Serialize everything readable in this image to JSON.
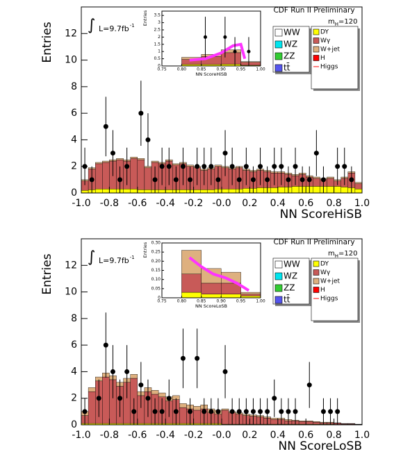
{
  "chart_data": [
    {
      "type": "histogram",
      "title": "CDF Run II Preliminary",
      "xlabel": "NN ScoreHiSB",
      "ylabel": "Entries",
      "lumi_symbol": "∫",
      "lumi": "L=9.7fb",
      "lumi_sup": "-1",
      "mass": "m",
      "mass_sub": "H",
      "mass_value": "=120",
      "bins": [
        -1,
        -0.95,
        -0.9,
        -0.85,
        -0.8,
        -0.75,
        -0.7,
        -0.65,
        -0.6,
        -0.55,
        -0.5,
        -0.45,
        -0.4,
        -0.35,
        -0.3,
        -0.25,
        -0.2,
        -0.15,
        -0.1,
        -0.05,
        0,
        0.05,
        0.1,
        0.15,
        0.2,
        0.25,
        0.3,
        0.35,
        0.4,
        0.45,
        0.5,
        0.55,
        0.6,
        0.65,
        0.7,
        0.75,
        0.8,
        0.85,
        0.9,
        0.95,
        1
      ],
      "xlim": [
        -1,
        1
      ],
      "ylim": [
        0,
        14
      ],
      "xticks": [
        {
          "value": -1,
          "label": "-1.0"
        },
        -0.8,
        -0.6,
        -0.4,
        -0.2,
        {
          "value": 0,
          "label": "-0.0"
        },
        0.2,
        0.4,
        0.6,
        0.8,
        {
          "value": 1,
          "label": "1.0"
        }
      ],
      "yticks": [
        0,
        2,
        4,
        6,
        8,
        10,
        12
      ],
      "series": [
        {
          "name": "DY",
          "color": "#ffff00",
          "values": [
            0.2,
            0.25,
            0.3,
            0.3,
            0.3,
            0.3,
            0.3,
            0.3,
            0.25,
            0.25,
            0.25,
            0.25,
            0.25,
            0.25,
            0.25,
            0.25,
            0.25,
            0.25,
            0.25,
            0.3,
            0.3,
            0.3,
            0.3,
            0.35,
            0.35,
            0.4,
            0.4,
            0.4,
            0.45,
            0.45,
            0.5,
            0.5,
            0.5,
            0.5,
            0.5,
            0.5,
            0.5,
            0.45,
            0.4,
            0.3
          ]
        },
        {
          "name": "Wγ",
          "color": "#c85a58",
          "values": [
            0.7,
            1.55,
            1.9,
            2.0,
            2.1,
            2.2,
            2.1,
            2.3,
            2.25,
            1.65,
            2.05,
            1.95,
            2.15,
            1.85,
            1.95,
            1.75,
            1.65,
            1.45,
            1.55,
            1.7,
            1.6,
            1.5,
            1.6,
            1.35,
            1.25,
            1.3,
            1.2,
            1.1,
            1.05,
            0.95,
            0.8,
            0.9,
            0.7,
            0.6,
            0.5,
            0.6,
            0.4,
            0.65,
            1.1,
            0.4
          ]
        },
        {
          "name": "W+jet",
          "color": "#deb07f",
          "values": [
            0.1,
            0.1,
            0.1,
            0.1,
            0.1,
            0.1,
            0.1,
            0.1,
            0.1,
            0.1,
            0.1,
            0.1,
            0.1,
            0.1,
            0.1,
            0.1,
            0.1,
            0.1,
            0.1,
            0.1,
            0.1,
            0.1,
            0.1,
            0.1,
            0.1,
            0.1,
            0.1,
            0.1,
            0.1,
            0.1,
            0.1,
            0.1,
            0.1,
            0.1,
            0.1,
            0.1,
            0.1,
            0.1,
            0.1,
            0.1
          ]
        }
      ],
      "legend_extra": [
        {
          "name": "WW",
          "color": "#ffffff"
        },
        {
          "name": "WZ",
          "color": "#00e5ee"
        },
        {
          "name": "ZZ",
          "color": "#33cc33"
        },
        {
          "name": "tt̄",
          "color": "#5555ee"
        },
        {
          "name": "H",
          "color": "#ff0000"
        },
        {
          "name": "Higgs",
          "color": "#ff0000",
          "marker": "line"
        }
      ],
      "data": {
        "values": [
          2,
          1,
          null,
          5,
          3,
          1,
          2,
          null,
          6,
          4,
          1,
          2,
          2,
          1,
          2,
          1,
          2,
          2,
          2,
          1,
          3,
          2,
          1,
          2,
          1,
          2,
          1,
          2,
          2,
          1,
          2,
          1,
          1,
          3,
          1,
          null,
          2,
          2,
          1,
          null
        ],
        "errors": [
          1.41,
          1,
          null,
          2.24,
          1.73,
          1,
          1.41,
          null,
          2.45,
          2,
          1,
          1.41,
          1.41,
          1,
          1.41,
          1,
          1.41,
          1.41,
          1.41,
          1,
          1.73,
          1.41,
          1,
          1.41,
          1,
          1.41,
          1,
          1.41,
          1.41,
          1,
          1.41,
          1,
          1,
          1.73,
          1,
          null,
          1.41,
          1.41,
          1,
          null
        ]
      },
      "inset": {
        "xlabel": "NN ScoreHiSB",
        "ylabel": "Entries",
        "bins": [
          0.8,
          0.85,
          0.9,
          0.95,
          1
        ],
        "xlim": [
          0.75,
          1
        ],
        "ylim": [
          0,
          3.8
        ],
        "xticks": [
          0.75,
          {
            "value": 0.8,
            "label": "0.80"
          },
          0.85,
          {
            "value": 0.9,
            "label": "0.90"
          },
          0.95,
          {
            "value": 1,
            "label": "1.00"
          }
        ],
        "yticks": [
          0,
          0.5,
          1,
          1.5,
          2,
          2.5,
          3,
          3.5
        ],
        "series": [
          {
            "color": "#ffff00",
            "values": [
              0.1,
              0.1,
              0.12,
              0.05
            ]
          },
          {
            "color": "#c85a58",
            "values": [
              0.35,
              0.55,
              0.8,
              0.2
            ]
          },
          {
            "color": "#deb07f",
            "values": [
              0.15,
              0.15,
              0.2,
              0.05
            ]
          }
        ],
        "data": {
          "x": [
            0.86,
            0.91,
            0.935,
            0.97
          ],
          "values": [
            2,
            2,
            1,
            1
          ],
          "errors": [
            1.41,
            1.41,
            1,
            1
          ]
        },
        "signal": {
          "color": "#ff33ff",
          "x": [
            0.82,
            0.86,
            0.9,
            0.93,
            0.95,
            0.96
          ],
          "values": [
            0.4,
            0.5,
            0.9,
            1.4,
            1.5,
            0.5
          ]
        }
      }
    },
    {
      "type": "histogram",
      "title": "CDF Run II Preliminary",
      "xlabel": "NN ScoreLoSB",
      "ylabel": "Entries",
      "lumi_symbol": "∫",
      "lumi": "L=9.7fb",
      "lumi_sup": "-1",
      "mass": "m",
      "mass_sub": "H",
      "mass_value": "=120",
      "bins": [
        -1,
        -0.95,
        -0.9,
        -0.85,
        -0.8,
        -0.75,
        -0.7,
        -0.65,
        -0.6,
        -0.55,
        -0.5,
        -0.45,
        -0.4,
        -0.35,
        -0.3,
        -0.25,
        -0.2,
        -0.15,
        -0.1,
        -0.05,
        0,
        0.05,
        0.1,
        0.15,
        0.2,
        0.25,
        0.3,
        0.35,
        0.4,
        0.45,
        0.5,
        0.55,
        0.6,
        0.65,
        0.7,
        0.75,
        0.8,
        0.85,
        0.9,
        0.95,
        1
      ],
      "xlim": [
        -1,
        1
      ],
      "ylim": [
        0,
        14
      ],
      "xticks": [
        {
          "value": -1,
          "label": "-1.0"
        },
        -0.8,
        -0.6,
        -0.4,
        -0.2,
        {
          "value": 0,
          "label": "-0.0"
        },
        0.2,
        0.4,
        0.6,
        0.8,
        {
          "value": 1,
          "label": "1.0"
        }
      ],
      "yticks": [
        0,
        2,
        4,
        6,
        8,
        10,
        12
      ],
      "series": [
        {
          "name": "DY",
          "color": "#ffff00",
          "values": [
            0.1,
            0.1,
            0.1,
            0.1,
            0.1,
            0.1,
            0.1,
            0.1,
            0.1,
            0.1,
            0.1,
            0.1,
            0.1,
            0.1,
            0.1,
            0.1,
            0.1,
            0.1,
            0.1,
            0.1,
            0.05,
            0.05,
            0.05,
            0.05,
            0.05,
            0.05,
            0.05,
            0.05,
            0.05,
            0.05,
            0.05,
            0.05,
            0.05,
            0.05,
            0.05,
            0.05,
            0.03,
            0.03,
            0.03,
            0.02
          ]
        },
        {
          "name": "Wγ",
          "color": "#c85a58",
          "values": [
            0.6,
            2.4,
            3.2,
            3.5,
            3.3,
            2.8,
            3.1,
            3.4,
            2.1,
            2.4,
            2.2,
            2.0,
            1.7,
            1.8,
            1.2,
            1.1,
            1.0,
            1.1,
            0.8,
            0.7,
            1.05,
            0.85,
            0.75,
            0.65,
            0.6,
            0.55,
            0.45,
            0.35,
            0.35,
            0.25,
            0.25,
            0.2,
            0.2,
            0.15,
            0.1,
            0.1,
            0.1,
            0.05,
            0.05,
            0.01
          ]
        },
        {
          "name": "W+jet",
          "color": "#deb07f",
          "values": [
            0.3,
            0.3,
            0.3,
            0.3,
            0.3,
            0.3,
            0.3,
            0.3,
            0.3,
            0.3,
            0.3,
            0.3,
            0.3,
            0.3,
            0.3,
            0.3,
            0.3,
            0.3,
            0.3,
            0.3,
            0.1,
            0.1,
            0.1,
            0.1,
            0.1,
            0.1,
            0.1,
            0.1,
            0.1,
            0.1,
            0.05,
            0.05,
            0.05,
            0.05,
            0.05,
            0.05,
            0.02,
            0.02,
            0.02,
            0.02
          ]
        }
      ],
      "legend_extra": [
        {
          "name": "WW",
          "color": "#ffffff"
        },
        {
          "name": "WZ",
          "color": "#00e5ee"
        },
        {
          "name": "ZZ",
          "color": "#33cc33"
        },
        {
          "name": "tt̄",
          "color": "#5555ee"
        },
        {
          "name": "H",
          "color": "#ff0000"
        },
        {
          "name": "Higgs",
          "color": "#ff0000",
          "marker": "line"
        }
      ],
      "data": {
        "values": [
          1,
          null,
          2,
          6,
          4,
          2,
          4,
          1,
          3,
          2,
          1,
          1,
          2,
          1,
          5,
          1,
          5,
          1,
          1,
          1,
          4,
          1,
          1,
          1,
          1,
          1,
          1,
          2,
          1,
          1,
          1,
          null,
          3,
          null,
          1,
          1,
          1,
          null,
          null,
          null
        ],
        "errors": [
          1,
          null,
          1.41,
          2.45,
          2,
          1.41,
          2,
          1,
          1.73,
          1.41,
          1,
          1,
          1.41,
          1,
          2.24,
          1,
          2.24,
          1,
          1,
          1,
          2,
          1,
          1,
          1,
          1,
          1,
          1,
          1.41,
          1,
          1,
          1,
          null,
          1.73,
          null,
          1,
          1,
          1,
          null,
          null,
          null
        ]
      },
      "inset": {
        "xlabel": "NN ScoreLoSB",
        "ylabel": "Entries",
        "bins": [
          0.8,
          0.85,
          0.9,
          0.95,
          1
        ],
        "xlim": [
          0.75,
          1
        ],
        "ylim": [
          0,
          0.3
        ],
        "xticks": [
          0.75,
          {
            "value": 0.8,
            "label": "0.80"
          },
          0.85,
          {
            "value": 0.9,
            "label": "0.90"
          },
          0.95,
          {
            "value": 1,
            "label": "1.00"
          }
        ],
        "yticks": [
          0,
          0.05,
          {
            "value": 0.1,
            "label": "0.10"
          },
          0.15,
          {
            "value": 0.2,
            "label": "0.20"
          },
          0.25,
          {
            "value": 0.3,
            "label": "0.30"
          }
        ],
        "series": [
          {
            "color": "#ffff00",
            "values": [
              0.03,
              0.02,
              0.02,
              0.01
            ]
          },
          {
            "color": "#c85a58",
            "values": [
              0.1,
              0.06,
              0.06,
              0.01
            ]
          },
          {
            "color": "#deb07f",
            "values": [
              0.13,
              0.08,
              0.06,
              0.01
            ]
          }
        ],
        "signal": {
          "color": "#ff33ff",
          "x": [
            0.82,
            0.85,
            0.88,
            0.91,
            0.94,
            0.97
          ],
          "values": [
            0.22,
            0.17,
            0.13,
            0.11,
            0.08,
            0.04
          ]
        }
      }
    }
  ]
}
